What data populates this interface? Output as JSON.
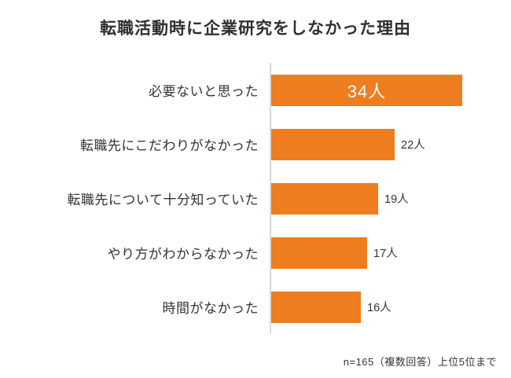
{
  "title": "転職活動時に企業研究をしなかった理由",
  "footnote": "n=165（複数回答）上位5位まで",
  "colors": {
    "bar": "#ED7D1F",
    "axis": "#D9D9D9",
    "title_text": "#2F2F2F",
    "label_text": "#333333",
    "value_inside_text": "#FFFFFF"
  },
  "chart_data": {
    "type": "bar",
    "orientation": "horizontal",
    "title": "転職活動時に企業研究をしなかった理由",
    "categories": [
      "必要ないと思った",
      "転職先にこだわりがなかった",
      "転職先について十分知っていた",
      "やり方がわからなかった",
      "時間がなかった"
    ],
    "values": [
      34,
      22,
      19,
      17,
      16
    ],
    "value_labels": [
      "34人",
      "22人",
      "19人",
      "17人",
      "16人"
    ],
    "unit": "人",
    "xlim": [
      0,
      34
    ],
    "grid": false,
    "legend": false,
    "source_note": "n=165（複数回答）上位5位まで"
  }
}
